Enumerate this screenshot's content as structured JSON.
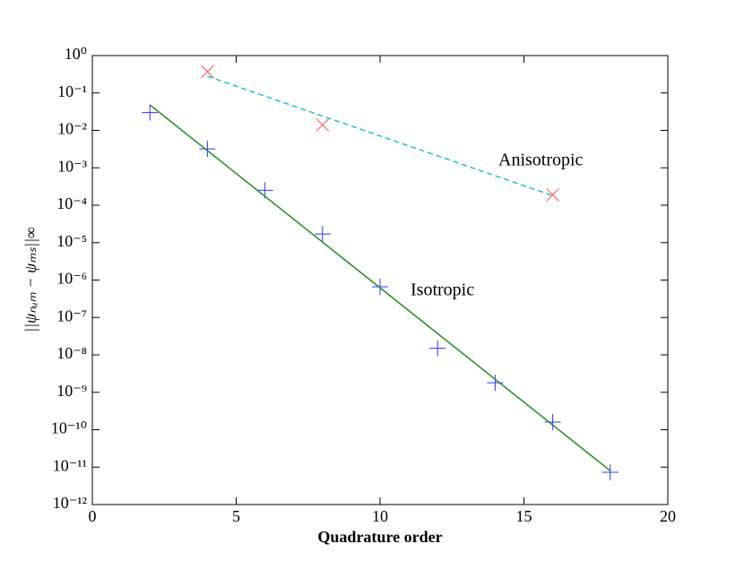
{
  "chart_data": {
    "type": "line",
    "xlabel": "Quadrature order",
    "ylabel": "||ψₙᵤₘ − ψₘₛ||∞",
    "xlim": [
      0,
      20
    ],
    "xticks": [
      0,
      5,
      10,
      15,
      20
    ],
    "ylim": [
      1e-12,
      1
    ],
    "yscale": "log",
    "yticks": [
      {
        "value": 1e-12,
        "label": "10⁻¹²"
      },
      {
        "value": 1e-11,
        "label": "10⁻¹¹"
      },
      {
        "value": 1e-10,
        "label": "10⁻¹⁰"
      },
      {
        "value": 1e-09,
        "label": "10⁻⁹"
      },
      {
        "value": 1e-08,
        "label": "10⁻⁸"
      },
      {
        "value": 1e-07,
        "label": "10⁻⁷"
      },
      {
        "value": 1e-06,
        "label": "10⁻⁶"
      },
      {
        "value": 1e-05,
        "label": "10⁻⁵"
      },
      {
        "value": 0.0001,
        "label": "10⁻⁴"
      },
      {
        "value": 0.001,
        "label": "10⁻³"
      },
      {
        "value": 0.01,
        "label": "10⁻²"
      },
      {
        "value": 0.1,
        "label": "10⁻¹"
      },
      {
        "value": 1,
        "label": "10⁰"
      }
    ],
    "series": [
      {
        "marker": "plus",
        "color": "#3333ff",
        "x": [
          2,
          4,
          6,
          8,
          10,
          12,
          14,
          16,
          18
        ],
        "values": [
          0.03,
          0.0032,
          0.00025,
          1.7e-05,
          6.6e-07,
          1.5e-08,
          1.8e-09,
          1.6e-10,
          7.3e-12
        ]
      },
      {
        "linestyle": "solid",
        "color": "#228b22",
        "x": [
          2,
          18
        ],
        "values": [
          0.048,
          8e-12
        ]
      },
      {
        "marker": "cross",
        "color": "#ff5555",
        "x": [
          4,
          8,
          16
        ],
        "values": [
          0.37,
          0.014,
          0.00019
        ]
      },
      {
        "linestyle": "dashed",
        "color": "#20c0c8",
        "x": [
          4,
          16
        ],
        "values": [
          0.28,
          0.00018
        ]
      }
    ],
    "annotations": [
      "Anisotropic",
      "Isotropic"
    ]
  }
}
